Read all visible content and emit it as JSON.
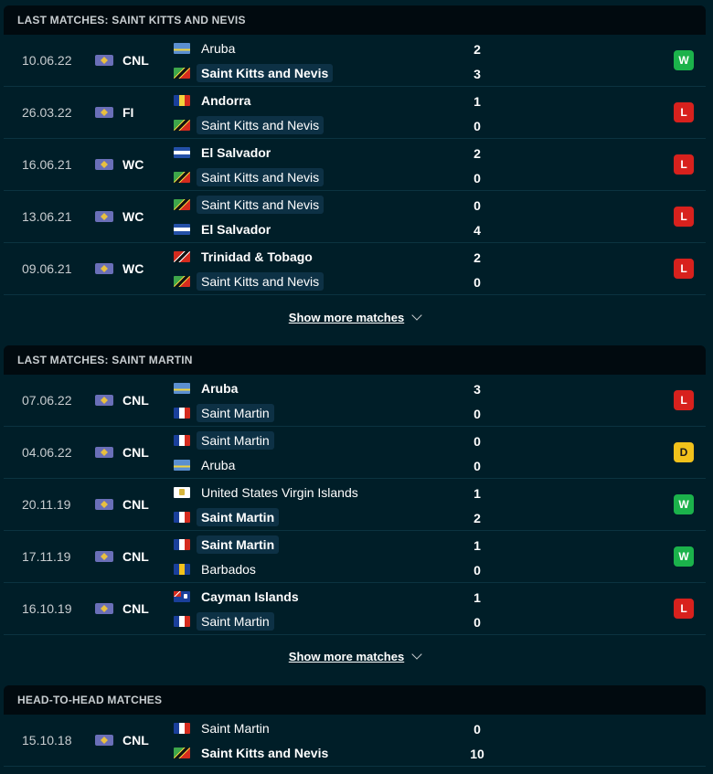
{
  "sections": [
    {
      "title": "LAST MATCHES: SAINT KITTS AND NEVIS",
      "matches": [
        {
          "date": "10.06.22",
          "comp": "CNL",
          "home": "Aruba",
          "away": "Saint Kitts and Nevis",
          "home_score": "2",
          "away_score": "3",
          "result": "W"
        },
        {
          "date": "26.03.22",
          "comp": "FI",
          "home": "Andorra",
          "away": "Saint Kitts and Nevis",
          "home_score": "1",
          "away_score": "0",
          "result": "L"
        },
        {
          "date": "16.06.21",
          "comp": "WC",
          "home": "El Salvador",
          "away": "Saint Kitts and Nevis",
          "home_score": "2",
          "away_score": "0",
          "result": "L"
        },
        {
          "date": "13.06.21",
          "comp": "WC",
          "home": "Saint Kitts and Nevis",
          "away": "El Salvador",
          "home_score": "0",
          "away_score": "4",
          "result": "L"
        },
        {
          "date": "09.06.21",
          "comp": "WC",
          "home": "Trinidad & Tobago",
          "away": "Saint Kitts and Nevis",
          "home_score": "2",
          "away_score": "0",
          "result": "L"
        }
      ],
      "more_label": "Show more matches"
    },
    {
      "title": "LAST MATCHES: SAINT MARTIN",
      "matches": [
        {
          "date": "07.06.22",
          "comp": "CNL",
          "home": "Aruba",
          "away": "Saint Martin",
          "home_score": "3",
          "away_score": "0",
          "result": "L"
        },
        {
          "date": "04.06.22",
          "comp": "CNL",
          "home": "Saint Martin",
          "away": "Aruba",
          "home_score": "0",
          "away_score": "0",
          "result": "D"
        },
        {
          "date": "20.11.19",
          "comp": "CNL",
          "home": "United States Virgin Islands",
          "away": "Saint Martin",
          "home_score": "1",
          "away_score": "2",
          "result": "W"
        },
        {
          "date": "17.11.19",
          "comp": "CNL",
          "home": "Saint Martin",
          "away": "Barbados",
          "home_score": "1",
          "away_score": "0",
          "result": "W"
        },
        {
          "date": "16.10.19",
          "comp": "CNL",
          "home": "Cayman Islands",
          "away": "Saint Martin",
          "home_score": "1",
          "away_score": "0",
          "result": "L"
        }
      ],
      "more_label": "Show more matches"
    },
    {
      "title": "HEAD-TO-HEAD MATCHES",
      "matches": [
        {
          "date": "15.10.18",
          "comp": "CNL",
          "home": "Saint Martin",
          "away": "Saint Kitts and Nevis",
          "home_score": "0",
          "away_score": "10"
        }
      ]
    }
  ],
  "colors": {
    "background": "#001e28",
    "header_bg": "#010a0f",
    "win": "#1bb24b",
    "loss": "#d8211d",
    "draw": "#f2c21b",
    "highlight": "#0d3145"
  }
}
